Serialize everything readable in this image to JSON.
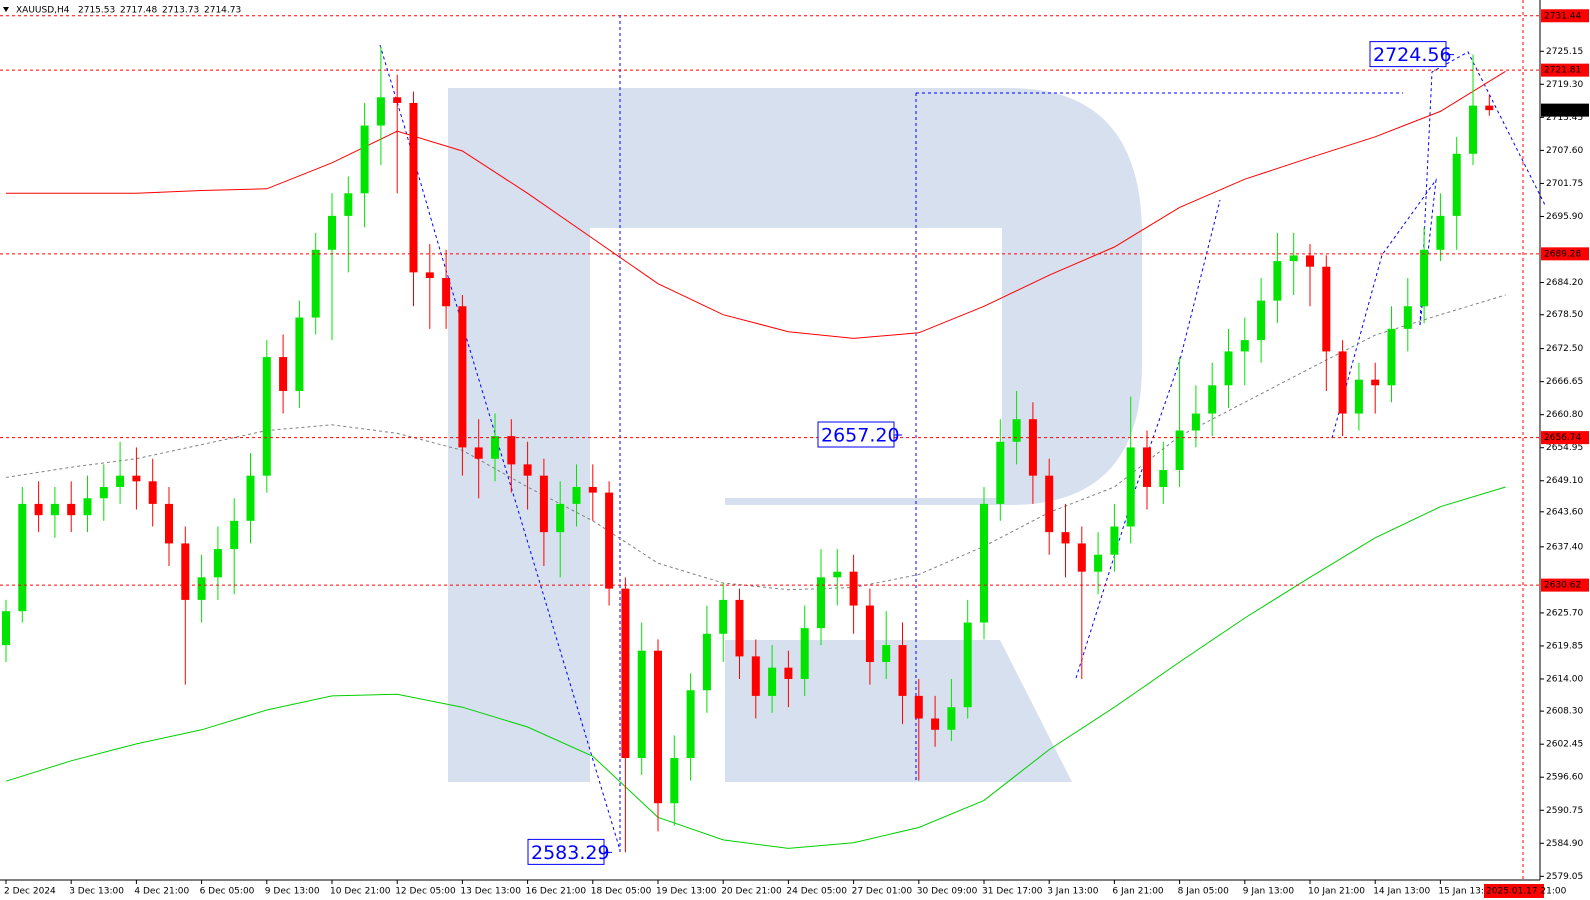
{
  "header": {
    "symbol": "XAUUSD,H4",
    "ohlc": [
      2715.53,
      2717.48,
      2713.73,
      2714.73
    ]
  },
  "chart_data": {
    "type": "candlestick",
    "up_color": "#00e400",
    "down_color": "#ff0000",
    "ylim": [
      2578.4,
      2733.7
    ],
    "yticks": [
      2725.15,
      {
        "value": 2719.3,
        "label": "2719.30"
      },
      2713.45,
      {
        "value": 2707.6,
        "label": "2707.60"
      },
      2701.75,
      {
        "value": 2695.9,
        "label": "2695.90"
      },
      {
        "value": 2684.2,
        "label": "2684.20"
      },
      {
        "value": 2678.5,
        "label": "2678.50"
      },
      {
        "value": 2672.5,
        "label": "2672.50"
      },
      2666.65,
      {
        "value": 2660.8,
        "label": "2660.80"
      },
      2654.95,
      {
        "value": 2649.1,
        "label": "2649.10"
      },
      {
        "value": 2643.6,
        "label": "2643.60"
      },
      {
        "value": 2637.4,
        "label": "2637.40"
      },
      {
        "value": 2625.7,
        "label": "2625.70"
      },
      2619.85,
      {
        "value": 2614,
        "label": "2614.00"
      },
      {
        "value": 2608.3,
        "label": "2608.30"
      },
      2602.45,
      {
        "value": 2596.6,
        "label": "2596.60"
      },
      2590.75,
      {
        "value": 2584.9,
        "label": "2584.90"
      },
      2579.05
    ],
    "xticks": [
      "2 Dec 2024",
      "3 Dec 13:00",
      "4 Dec 21:00",
      "6 Dec 05:00",
      "9 Dec 13:00",
      "10 Dec 21:00",
      "12 Dec 05:00",
      "13 Dec 13:00",
      "16 Dec 21:00",
      "18 Dec 05:00",
      "19 Dec 13:00",
      "20 Dec 21:00",
      "24 Dec 05:00",
      "27 Dec 01:00",
      "30 Dec 09:00",
      "31 Dec 17:00",
      "3 Jan 13:00",
      "6 Jan 21:00",
      "8 Jan 05:00",
      "9 Jan 13:00",
      "10 Jan 21:00",
      "14 Jan 13:00",
      "15 Jan 13:00"
    ],
    "time_marker": "2025.01.17 21:00",
    "ohlc": [
      [
        2620,
        2628,
        2617,
        2626
      ],
      [
        2626,
        2648,
        2624,
        2645
      ],
      [
        2645,
        2649,
        2640,
        2643
      ],
      [
        2643,
        2648,
        2639,
        2645
      ],
      [
        2645,
        2649,
        2640,
        2643
      ],
      [
        2643,
        2650,
        2640,
        2646
      ],
      [
        2646,
        2652,
        2642,
        2648
      ],
      [
        2648,
        2656,
        2645,
        2650
      ],
      [
        2650,
        2655,
        2644,
        2649
      ],
      [
        2649,
        2653,
        2641,
        2645
      ],
      [
        2645,
        2648,
        2634,
        2638
      ],
      [
        2638,
        2641,
        2613,
        2628
      ],
      [
        2628,
        2636,
        2624,
        2632
      ],
      [
        2632,
        2641,
        2628,
        2637
      ],
      [
        2637,
        2646,
        2629,
        2642
      ],
      [
        2642,
        2654,
        2638,
        2650
      ],
      [
        2650,
        2674,
        2647,
        2671
      ],
      [
        2671,
        2675,
        2661,
        2665
      ],
      [
        2665,
        2681,
        2662,
        2678
      ],
      [
        2678,
        2693,
        2675,
        2690
      ],
      [
        2690,
        2700,
        2674,
        2696
      ],
      [
        2696,
        2703,
        2686,
        2700
      ],
      [
        2700,
        2716,
        2694,
        2712
      ],
      [
        2712,
        2726,
        2705,
        2717
      ],
      [
        2717,
        2721,
        2700,
        2716
      ],
      [
        2716,
        2718,
        2680,
        2686
      ],
      [
        2686,
        2691,
        2676,
        2685
      ],
      [
        2685,
        2690,
        2676,
        2680
      ],
      [
        2680,
        2682,
        2650,
        2655
      ],
      [
        2655,
        2660,
        2646,
        2653
      ],
      [
        2653,
        2661,
        2649,
        2657
      ],
      [
        2657,
        2660,
        2647,
        2652
      ],
      [
        2652,
        2656,
        2644,
        2650
      ],
      [
        2650,
        2653,
        2634,
        2640
      ],
      [
        2640,
        2649,
        2632,
        2645
      ],
      [
        2645,
        2652,
        2641,
        2648
      ],
      [
        2648,
        2652,
        2642,
        2647
      ],
      [
        2647,
        2649,
        2627,
        2630
      ],
      [
        2630,
        2632,
        2583.29,
        2600
      ],
      [
        2600,
        2624,
        2597,
        2619
      ],
      [
        2619,
        2621,
        2587,
        2592
      ],
      [
        2592,
        2604,
        2588,
        2600
      ],
      [
        2600,
        2615,
        2596,
        2612
      ],
      [
        2612,
        2627,
        2608,
        2622
      ],
      [
        2622,
        2631,
        2617,
        2628
      ],
      [
        2628,
        2630,
        2614,
        2618
      ],
      [
        2618,
        2621,
        2607,
        2611
      ],
      [
        2611,
        2620,
        2608,
        2616
      ],
      [
        2616,
        2619,
        2609,
        2614
      ],
      [
        2614,
        2627,
        2611,
        2623
      ],
      [
        2623,
        2637,
        2620,
        2632
      ],
      [
        2632,
        2637,
        2627,
        2633
      ],
      [
        2633,
        2636,
        2622,
        2627
      ],
      [
        2627,
        2630,
        2613,
        2617
      ],
      [
        2617,
        2626,
        2614,
        2620
      ],
      [
        2620,
        2624,
        2606,
        2611
      ],
      [
        2611,
        2614,
        2596,
        2607
      ],
      [
        2607,
        2611,
        2602,
        2605
      ],
      [
        2605,
        2614,
        2603,
        2609
      ],
      [
        2609,
        2628,
        2607,
        2624
      ],
      [
        2624,
        2648,
        2621,
        2645
      ],
      [
        2645,
        2660,
        2642,
        2656
      ],
      [
        2656,
        2665,
        2652,
        2660
      ],
      [
        2660,
        2663,
        2645,
        2650
      ],
      [
        2650,
        2653,
        2636,
        2640
      ],
      [
        2640,
        2645,
        2632,
        2638
      ],
      [
        2638,
        2641,
        2614,
        2633
      ],
      [
        2633,
        2640,
        2629,
        2636
      ],
      [
        2636,
        2645,
        2633,
        2641
      ],
      [
        2641,
        2664,
        2638,
        2655
      ],
      [
        2655,
        2658,
        2644,
        2648
      ],
      [
        2648,
        2656,
        2645,
        2651
      ],
      [
        2651,
        2671,
        2648,
        2658
      ],
      [
        2658,
        2666,
        2655,
        2661
      ],
      [
        2661,
        2670,
        2657,
        2666
      ],
      [
        2666,
        2676,
        2662,
        2672
      ],
      [
        2672,
        2678,
        2666,
        2674
      ],
      [
        2674,
        2685,
        2670,
        2681
      ],
      [
        2681,
        2693,
        2677,
        2688
      ],
      [
        2688,
        2693,
        2682,
        2689
      ],
      [
        2689,
        2691,
        2680,
        2687
      ],
      [
        2687,
        2689,
        2665,
        2672
      ],
      [
        2672,
        2674,
        2657,
        2661
      ],
      [
        2661,
        2670,
        2658,
        2667
      ],
      [
        2667,
        2670,
        2661,
        2666
      ],
      [
        2666,
        2680,
        2663,
        2676
      ],
      [
        2676,
        2685,
        2672,
        2680
      ],
      [
        2680,
        2694,
        2677,
        2690
      ],
      [
        2690,
        2700,
        2688,
        2696
      ],
      [
        2696,
        2710,
        2690,
        2707
      ],
      [
        2707,
        2724.56,
        2705,
        2715.53
      ],
      [
        2715.53,
        2717.48,
        2713.73,
        2714.73
      ]
    ],
    "moving_averages": [
      {
        "color": "#ff0000",
        "values": [
          2700,
          2700,
          2700,
          2700.5,
          2700.8,
          2705.4,
          2711,
          2707.5,
          2700,
          2692,
          2684,
          2678.5,
          2675.5,
          2674.3,
          2675.3,
          2680,
          2685.5,
          2690.5,
          2697.5,
          2702.5,
          2706.3,
          2710,
          2714.5,
          2721.6
        ]
      },
      {
        "color": "#00d000",
        "values": [
          2595.9,
          2599.5,
          2602.5,
          2605,
          2608.5,
          2611,
          2611.3,
          2609,
          2605.5,
          2600.3,
          2589.5,
          2585.5,
          2584,
          2585,
          2587.7,
          2592.5,
          2601.5,
          2609,
          2617,
          2624.8,
          2632,
          2639,
          2644.5,
          2648
        ]
      },
      {
        "color": "#808080",
        "dashed": true,
        "values": [
          2649.7,
          2651.5,
          2653,
          2655.5,
          2658,
          2659,
          2657.5,
          2654.5,
          2648,
          2642,
          2634.5,
          2631,
          2629.8,
          2630.2,
          2632.5,
          2637.5,
          2643.5,
          2648,
          2657,
          2663,
          2669,
          2674.9,
          2678.5,
          2682
        ]
      }
    ],
    "levels": {
      "color": "#ff0000",
      "values": [
        2731.44,
        2721.81,
        2689.28,
        2656.74,
        2630.62
      ]
    },
    "current_price": 2714.73,
    "annotations": {
      "color": "#0000ff",
      "values": [
        2724.56,
        2657.2,
        2583.29
      ],
      "value_labels": [
        "2724.56",
        "2657.20",
        "2583.29"
      ]
    }
  }
}
